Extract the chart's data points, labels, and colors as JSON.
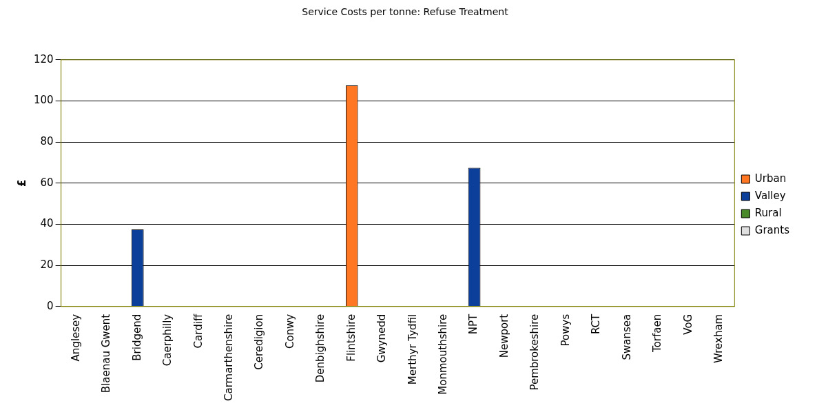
{
  "chart_data": {
    "type": "bar",
    "title": "Service Costs per tonne: Refuse Treatment",
    "ylabel": "£",
    "categories": [
      "Anglesey",
      "Blaenau Gwent",
      "Bridgend",
      "Caerphilly",
      "Cardiff",
      "Carmarthenshire",
      "Ceredigion",
      "Conwy",
      "Denbighshire",
      "Flintshire",
      "Gwynedd",
      "Merthyr Tydfil",
      "Monmouthshire",
      "NPT",
      "Newport",
      "Pembrokeshire",
      "Powys",
      "RCT",
      "Swansea",
      "Torfaen",
      "VoG",
      "Wrexham"
    ],
    "series": [
      {
        "name": "Urban",
        "color": "#ff7722",
        "values": [
          null,
          null,
          null,
          null,
          null,
          null,
          null,
          null,
          null,
          107.5,
          null,
          null,
          null,
          null,
          null,
          null,
          null,
          null,
          null,
          null,
          null,
          null
        ]
      },
      {
        "name": "Valley",
        "color": "#0c3f99",
        "values": [
          null,
          null,
          37.5,
          null,
          null,
          null,
          null,
          null,
          null,
          null,
          null,
          null,
          null,
          67.5,
          null,
          null,
          null,
          null,
          null,
          null,
          null,
          null
        ]
      },
      {
        "name": "Rural",
        "color": "#4a8a2a",
        "values": [
          null,
          null,
          null,
          null,
          null,
          null,
          null,
          null,
          null,
          null,
          null,
          null,
          null,
          null,
          null,
          null,
          null,
          null,
          null,
          null,
          null,
          null
        ]
      },
      {
        "name": "Grants",
        "color": "#e0e0e0",
        "values": [
          null,
          null,
          null,
          null,
          null,
          null,
          null,
          null,
          null,
          null,
          null,
          null,
          null,
          null,
          null,
          null,
          null,
          null,
          null,
          null,
          null,
          null
        ]
      }
    ],
    "stacked": true,
    "ylim": [
      0,
      120
    ],
    "yticks": [
      0,
      20,
      40,
      60,
      80,
      100,
      120
    ],
    "grid": "y",
    "legend": "right"
  }
}
